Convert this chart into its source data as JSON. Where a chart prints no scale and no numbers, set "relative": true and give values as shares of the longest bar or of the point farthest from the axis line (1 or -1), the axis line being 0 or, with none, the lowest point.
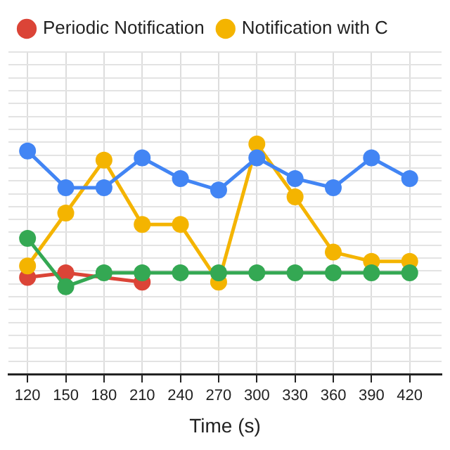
{
  "chart_data": {
    "type": "line",
    "relative": true,
    "xlabel": "Time (s)",
    "x": [
      120,
      150,
      180,
      210,
      240,
      270,
      300,
      330,
      360,
      390,
      420
    ],
    "xlim": [
      105,
      445
    ],
    "xticks": [
      120,
      150,
      180,
      210,
      240,
      270,
      300,
      330,
      360,
      390,
      420
    ],
    "grid": true,
    "legend": "top",
    "marker": "circle",
    "line_style": "solid",
    "series": [
      {
        "name": "Periodic Notification",
        "color": "#db4437",
        "values": [
          0.42,
          0.44,
          null,
          0.4,
          null,
          null,
          null,
          null,
          null,
          null,
          null
        ]
      },
      {
        "name": "Notification with C",
        "color": "#f4b400",
        "values": [
          0.47,
          0.7,
          0.93,
          0.65,
          0.65,
          0.4,
          1,
          0.77,
          0.53,
          0.49,
          0.49
        ]
      },
      {
        "color": "#4285f4",
        "values": [
          0.97,
          0.81,
          0.81,
          0.94,
          0.85,
          0.8,
          0.94,
          0.85,
          0.81,
          0.94,
          0.85
        ]
      },
      {
        "color": "#34a853",
        "values": [
          0.59,
          0.38,
          0.44,
          0.44,
          0.44,
          0.44,
          0.44,
          0.44,
          0.44,
          0.44,
          0.44
        ]
      }
    ]
  }
}
